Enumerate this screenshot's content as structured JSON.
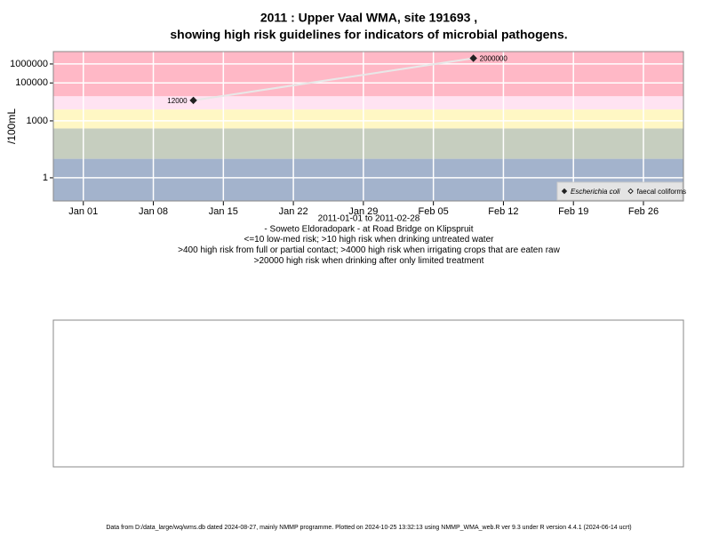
{
  "chart_data": {
    "type": "line",
    "title": [
      "2011 : Upper Vaal WMA, site 191693 ,",
      "showing high risk guidelines for indicators of microbial pathogens."
    ],
    "subtitle": [
      "2011-01-01 to 2011-02-28",
      "- Soweto Eldoradopark - at Road Bridge on Klipspruit",
      "<=10 low-med risk; >10 high risk when drinking untreated water",
      ">400 high risk from full or partial contact; >4000 high risk when irrigating crops that are eaten raw",
      ">20000 high risk when drinking after only limited treatment"
    ],
    "y_label": "/100mL",
    "footer": "Data from D:/data_large/wq/wms.db dated 2024-08-27, mainly NMMP programme. Plotted on 2024-10-25 13:32:13 using NMMP_WMA_web.R ver 9.3 under R version 4.4.1 (2024-06-14 ucrt)",
    "log_y": true,
    "ylim": [
      0.06,
      4500000
    ],
    "yticks": [
      1,
      1000,
      100000,
      1000000
    ],
    "xlim": [
      "2010-12-29",
      "2011-03-02"
    ],
    "xticks": [
      {
        "value": "2011-01-01",
        "label": "Jan 01"
      },
      {
        "value": "2011-01-08",
        "label": "Jan 08"
      },
      {
        "value": "2011-01-15",
        "label": "Jan 15"
      },
      {
        "value": "2011-01-22",
        "label": "Jan 22"
      },
      {
        "value": "2011-01-29",
        "label": "Jan 29"
      },
      {
        "value": "2011-02-05",
        "label": "Feb 05"
      },
      {
        "value": "2011-02-12",
        "label": "Feb 12"
      },
      {
        "value": "2011-02-19",
        "label": "Feb 19"
      },
      {
        "value": "2011-02-26",
        "label": "Feb 26"
      }
    ],
    "bands": {
      "thresholds": [
        10,
        400,
        4000,
        20000
      ],
      "colors": [
        "#a3b3cc",
        "#c6cebf",
        "#fff7c4",
        "#ffe3f2",
        "#ffb8c6"
      ]
    },
    "grid": true,
    "legend": "bottom-right",
    "x": [
      "2011-01-12",
      "2011-02-09"
    ],
    "series": [
      {
        "name": "Escherichia coli",
        "color": "#222222",
        "marker": "filled",
        "values": [
          12000,
          2000000
        ]
      },
      {
        "name": "faecal coliforms",
        "color": "#222222",
        "marker": "open",
        "values": [
          null,
          null
        ]
      }
    ]
  }
}
